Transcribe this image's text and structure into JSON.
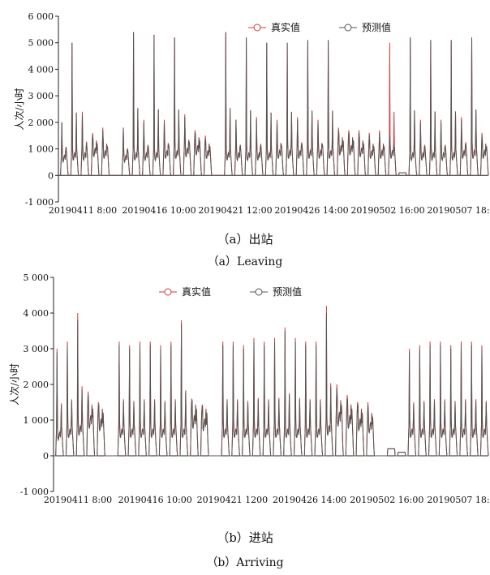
{
  "chart_data": [
    {
      "type": "line",
      "ylabel": "人次/小时",
      "ylim": [
        -1000,
        6000
      ],
      "yticks": [
        -1000,
        0,
        1000,
        2000,
        3000,
        4000,
        5000,
        6000
      ],
      "ytick_labels": [
        "-1 000",
        "0",
        "1 000",
        "2 000",
        "3 000",
        "4 000",
        "5 000",
        "6 000"
      ],
      "xtick_labels": [
        "20190411 8:00",
        "20190416 10:00",
        "20190421 12:00",
        "20190426 14:00",
        "20190502 16:00",
        "20190507 18:00"
      ],
      "legend": [
        "真实值",
        "预测值"
      ],
      "legend_position": "top",
      "series_colors": [
        "#d23a3a",
        "#555555"
      ],
      "days": [
        {
          "peak": 2000,
          "base": 800,
          "pred_peak": 2000
        },
        {
          "peak": 5000,
          "base": 900,
          "pred_peak": 5000
        },
        {
          "peak": 2400,
          "base": 900,
          "pred_peak": 2300
        },
        {
          "peak": 1600,
          "base": 1100,
          "pred_peak": 1500
        },
        {
          "peak": 1800,
          "base": 1000,
          "pred_peak": 1700
        },
        {
          "peak": 0,
          "base": 0,
          "pred_peak": 0
        },
        {
          "peak": 1800,
          "base": 800,
          "pred_peak": 1800
        },
        {
          "peak": 5400,
          "base": 900,
          "pred_peak": 5400
        },
        {
          "peak": 2100,
          "base": 900,
          "pred_peak": 2000
        },
        {
          "peak": 5300,
          "base": 900,
          "pred_peak": 5300
        },
        {
          "peak": 2100,
          "base": 1000,
          "pred_peak": 2000
        },
        {
          "peak": 5200,
          "base": 1000,
          "pred_peak": 5200
        },
        {
          "peak": 2300,
          "base": 1100,
          "pred_peak": 2200
        },
        {
          "peak": 1700,
          "base": 1200,
          "pred_peak": 1600
        },
        {
          "peak": 1500,
          "base": 1000,
          "pred_peak": 1400
        },
        {
          "peak": 0,
          "base": 0,
          "pred_peak": 0
        },
        {
          "peak": 5400,
          "base": 900,
          "pred_peak": 5400
        },
        {
          "peak": 2100,
          "base": 900,
          "pred_peak": 2100
        },
        {
          "peak": 5200,
          "base": 900,
          "pred_peak": 5200
        },
        {
          "peak": 2200,
          "base": 900,
          "pred_peak": 2100
        },
        {
          "peak": 5000,
          "base": 900,
          "pred_peak": 5000
        },
        {
          "peak": 2100,
          "base": 1000,
          "pred_peak": 2000
        },
        {
          "peak": 5000,
          "base": 1000,
          "pred_peak": 5000
        },
        {
          "peak": 2200,
          "base": 1000,
          "pred_peak": 2100
        },
        {
          "peak": 5100,
          "base": 1000,
          "pred_peak": 5100
        },
        {
          "peak": 2100,
          "base": 1000,
          "pred_peak": 2000
        },
        {
          "peak": 5100,
          "base": 1000,
          "pred_peak": 5100
        },
        {
          "peak": 1800,
          "base": 1200,
          "pred_peak": 1700
        },
        {
          "peak": 1700,
          "base": 1200,
          "pred_peak": 1600
        },
        {
          "peak": 1700,
          "base": 1100,
          "pred_peak": 1600
        },
        {
          "peak": 1600,
          "base": 1000,
          "pred_peak": 1500
        },
        {
          "peak": 1700,
          "base": 1000,
          "pred_peak": 1600
        },
        {
          "peak": 5000,
          "base": 1000,
          "pred_peak": 1500
        },
        {
          "peak": 100,
          "base": 100,
          "pred_peak": 100
        },
        {
          "peak": 5200,
          "base": 900,
          "pred_peak": 5200
        },
        {
          "peak": 2100,
          "base": 900,
          "pred_peak": 2000
        },
        {
          "peak": 5100,
          "base": 900,
          "pred_peak": 5100
        },
        {
          "peak": 2100,
          "base": 900,
          "pred_peak": 2000
        },
        {
          "peak": 5100,
          "base": 900,
          "pred_peak": 5100
        },
        {
          "peak": 2200,
          "base": 1000,
          "pred_peak": 2100
        },
        {
          "peak": 5200,
          "base": 1000,
          "pred_peak": 5200
        },
        {
          "peak": 1600,
          "base": 1000,
          "pred_peak": 1500
        }
      ]
    },
    {
      "type": "line",
      "ylabel": "人次/小时",
      "ylim": [
        -1000,
        5000
      ],
      "yticks": [
        -1000,
        0,
        1000,
        2000,
        3000,
        4000,
        5000
      ],
      "ytick_labels": [
        "-1 000",
        "0",
        "1 000",
        "2 000",
        "3 000",
        "4 000",
        "5 000"
      ],
      "xtick_labels": [
        "20190411 8:00",
        "20190416 10:00",
        "20190421 1200",
        "20190426 14:00",
        "20190502 16:00",
        "20190507 18:00"
      ],
      "legend": [
        "真实值",
        "预测值"
      ],
      "legend_position": "top",
      "series_colors": [
        "#d23a3a",
        "#555555"
      ],
      "days": [
        {
          "peak": 3000,
          "base": 700,
          "pred_peak": 2900
        },
        {
          "peak": 3200,
          "base": 800,
          "pred_peak": 3100
        },
        {
          "peak": 4000,
          "base": 900,
          "pred_peak": 3800
        },
        {
          "peak": 1800,
          "base": 1200,
          "pred_peak": 1700
        },
        {
          "peak": 1500,
          "base": 1100,
          "pred_peak": 1400
        },
        {
          "peak": 0,
          "base": 0,
          "pred_peak": 0
        },
        {
          "peak": 3200,
          "base": 800,
          "pred_peak": 3100
        },
        {
          "peak": 3100,
          "base": 800,
          "pred_peak": 3000
        },
        {
          "peak": 3200,
          "base": 800,
          "pred_peak": 3100
        },
        {
          "peak": 3200,
          "base": 800,
          "pred_peak": 3100
        },
        {
          "peak": 3100,
          "base": 800,
          "pred_peak": 3000
        },
        {
          "peak": 3200,
          "base": 800,
          "pred_peak": 3100
        },
        {
          "peak": 3800,
          "base": 800,
          "pred_peak": 3700
        },
        {
          "peak": 1600,
          "base": 1200,
          "pred_peak": 1500
        },
        {
          "peak": 1400,
          "base": 1100,
          "pred_peak": 1300
        },
        {
          "peak": 0,
          "base": 0,
          "pred_peak": 0
        },
        {
          "peak": 3200,
          "base": 800,
          "pred_peak": 3100
        },
        {
          "peak": 3200,
          "base": 800,
          "pred_peak": 3100
        },
        {
          "peak": 3100,
          "base": 800,
          "pred_peak": 3000
        },
        {
          "peak": 3300,
          "base": 800,
          "pred_peak": 3200
        },
        {
          "peak": 3200,
          "base": 800,
          "pred_peak": 3100
        },
        {
          "peak": 3300,
          "base": 800,
          "pred_peak": 3200
        },
        {
          "peak": 3600,
          "base": 800,
          "pred_peak": 3500
        },
        {
          "peak": 3300,
          "base": 800,
          "pred_peak": 3200
        },
        {
          "peak": 3200,
          "base": 800,
          "pred_peak": 3100
        },
        {
          "peak": 3200,
          "base": 800,
          "pred_peak": 3100
        },
        {
          "peak": 4200,
          "base": 900,
          "pred_peak": 4000
        },
        {
          "peak": 2000,
          "base": 1300,
          "pred_peak": 1900
        },
        {
          "peak": 1700,
          "base": 1200,
          "pred_peak": 1600
        },
        {
          "peak": 1500,
          "base": 1100,
          "pred_peak": 1400
        },
        {
          "peak": 1500,
          "base": 1000,
          "pred_peak": 1400
        },
        {
          "peak": 0,
          "base": 0,
          "pred_peak": 0
        },
        {
          "peak": 200,
          "base": 200,
          "pred_peak": 200
        },
        {
          "peak": 100,
          "base": 100,
          "pred_peak": 100
        },
        {
          "peak": 3000,
          "base": 800,
          "pred_peak": 2900
        },
        {
          "peak": 3100,
          "base": 800,
          "pred_peak": 3000
        },
        {
          "peak": 3200,
          "base": 800,
          "pred_peak": 3100
        },
        {
          "peak": 3200,
          "base": 800,
          "pred_peak": 3100
        },
        {
          "peak": 3100,
          "base": 800,
          "pred_peak": 3000
        },
        {
          "peak": 3200,
          "base": 800,
          "pred_peak": 3100
        },
        {
          "peak": 3200,
          "base": 800,
          "pred_peak": 3100
        },
        {
          "peak": 3100,
          "base": 800,
          "pred_peak": 3000
        }
      ]
    }
  ],
  "captions": {
    "a_cn": "（a）出站",
    "a_en": "（a）Leaving",
    "b_cn": "（b）进站",
    "b_en": "（b）Arriving"
  }
}
